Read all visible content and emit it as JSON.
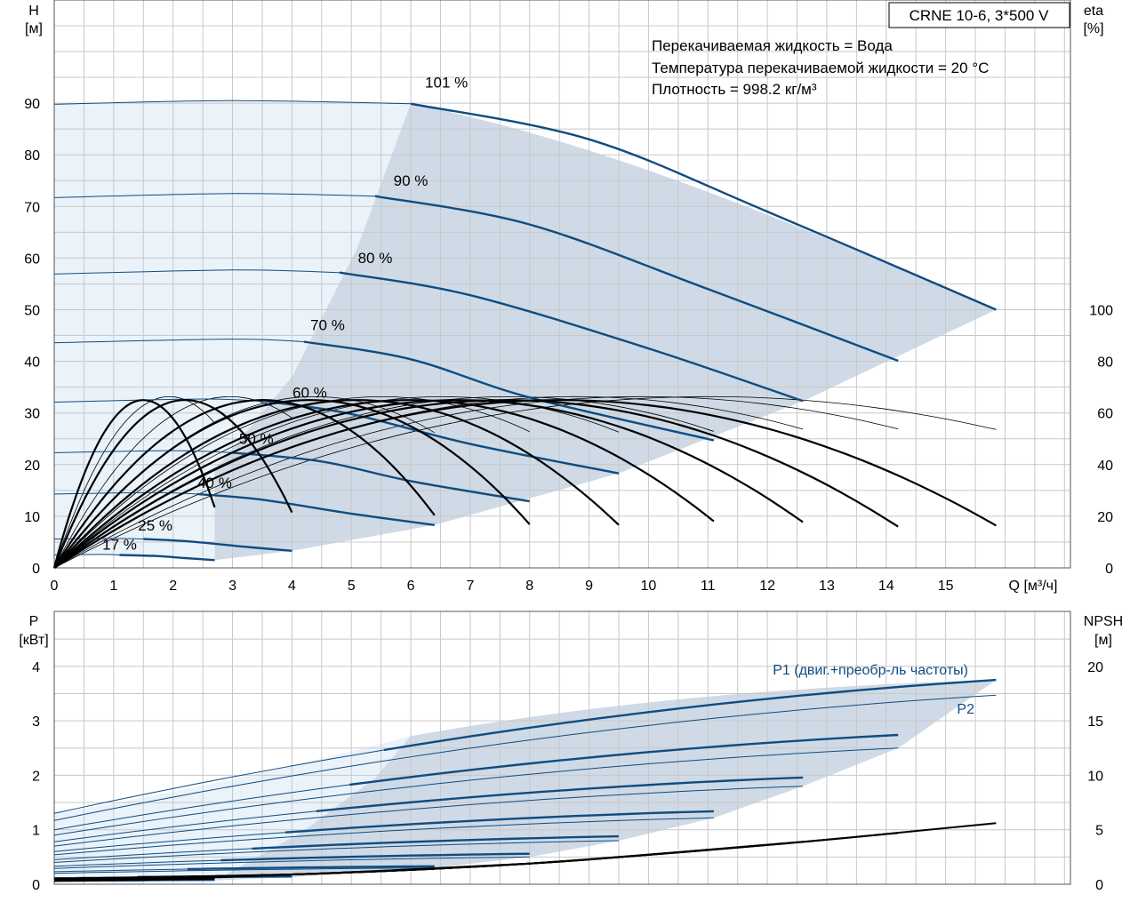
{
  "header": {
    "model": "CRNE 10-6, 3*500 V",
    "info": [
      "Перекачиваемая жидкость = Вода",
      "Температура перекачиваемой жидкости = 20 °C",
      "Плотность = 998.2 кг/м³"
    ]
  },
  "colors": {
    "grid": "#c8c8c8",
    "curve_blue": "#0f4c81",
    "curve_black": "#000000",
    "region_dark": "#cfdae6",
    "region_light": "#eaf2fa"
  },
  "chart_data": [
    {
      "type": "line",
      "name": "head-efficiency",
      "y_title": "H",
      "y_unit": "[м]",
      "y2_title": "eta",
      "y2_unit": "[%]",
      "x_label": "Q [м³/ч]",
      "xlim": [
        0,
        17.1
      ],
      "ylim": [
        0,
        90
      ],
      "y2lim": [
        0,
        100
      ],
      "x_ticks": [
        0,
        1,
        2,
        3,
        4,
        5,
        6,
        7,
        8,
        9,
        10,
        11,
        12,
        13,
        14,
        15
      ],
      "y_ticks": [
        0,
        10,
        20,
        30,
        40,
        50,
        60,
        70,
        80,
        90
      ],
      "y2_ticks": [
        0,
        20,
        40,
        60,
        80,
        100
      ],
      "grid": true,
      "head_curves": [
        {
          "label": "101 %",
          "label_pos": [
            6.6,
            93
          ],
          "points": [
            [
              0,
              89.8
            ],
            [
              3,
              90.5
            ],
            [
              6,
              89.9
            ],
            [
              9,
              83
            ],
            [
              12,
              69
            ],
            [
              15.85,
              50
            ]
          ]
        },
        {
          "label": "90 %",
          "label_pos": [
            6.0,
            74
          ],
          "points": [
            [
              0,
              71.7
            ],
            [
              3,
              72.5
            ],
            [
              5.4,
              72
            ],
            [
              8,
              66.5
            ],
            [
              11,
              54
            ],
            [
              14.2,
              40.1
            ]
          ]
        },
        {
          "label": "80 %",
          "label_pos": [
            5.4,
            59
          ],
          "points": [
            [
              0,
              56.9
            ],
            [
              3,
              57.7
            ],
            [
              4.8,
              57.2
            ],
            [
              7,
              52.8
            ],
            [
              10,
              42.5
            ],
            [
              12.6,
              32.3
            ]
          ]
        },
        {
          "label": "70 %",
          "label_pos": [
            4.6,
            46
          ],
          "points": [
            [
              0,
              43.6
            ],
            [
              3,
              44.3
            ],
            [
              4.2,
              43.8
            ],
            [
              6,
              40.4
            ],
            [
              8,
              33
            ],
            [
              11.1,
              24.7
            ]
          ]
        },
        {
          "label": "60 %",
          "label_pos": [
            4.3,
            33
          ],
          "points": [
            [
              0,
              32.1
            ],
            [
              2.5,
              32.7
            ],
            [
              3.6,
              32.2
            ],
            [
              5,
              29.8
            ],
            [
              7,
              24
            ],
            [
              9.5,
              18.3
            ]
          ]
        },
        {
          "label": "50 %",
          "label_pos": [
            3.4,
            24
          ],
          "points": [
            [
              0,
              22.3
            ],
            [
              2,
              22.7
            ],
            [
              3,
              22.3
            ],
            [
              4.5,
              20.6
            ],
            [
              6,
              16.8
            ],
            [
              8,
              12.9
            ]
          ]
        },
        {
          "label": "40 %",
          "label_pos": [
            2.7,
            15.5
          ],
          "points": [
            [
              0,
              14.3
            ],
            [
              1.7,
              14.6
            ],
            [
              2.4,
              14.3
            ],
            [
              3.5,
              13.2
            ],
            [
              5,
              10.5
            ],
            [
              6.4,
              8.3
            ]
          ]
        },
        {
          "label": "25 %",
          "label_pos": [
            1.7,
            7.2
          ],
          "points": [
            [
              0,
              5.6
            ],
            [
              1,
              5.7
            ],
            [
              1.5,
              5.6
            ],
            [
              2.3,
              5.1
            ],
            [
              3.2,
              4.1
            ],
            [
              4,
              3.3
            ]
          ]
        },
        {
          "label": "17 %",
          "label_pos": [
            1.1,
            3.5
          ],
          "points": [
            [
              0,
              2.5
            ],
            [
              0.8,
              2.6
            ],
            [
              1.1,
              2.5
            ],
            [
              1.7,
              2.3
            ],
            [
              2.2,
              1.9
            ],
            [
              2.7,
              1.5
            ]
          ]
        }
      ],
      "eta_curves": [
        {
          "peak_q": 8.5,
          "peak": 65,
          "end_q": 15.85
        },
        {
          "peak_q": 7.6,
          "peak": 65,
          "end_q": 14.2
        },
        {
          "peak_q": 6.8,
          "peak": 65,
          "end_q": 12.6
        },
        {
          "peak_q": 6.0,
          "peak": 65,
          "end_q": 11.1
        },
        {
          "peak_q": 5.1,
          "peak": 65,
          "end_q": 9.5
        },
        {
          "peak_q": 4.3,
          "peak": 65,
          "end_q": 8.0
        },
        {
          "peak_q": 3.5,
          "peak": 65,
          "end_q": 6.4
        },
        {
          "peak_q": 2.2,
          "peak": 65,
          "end_q": 4.0
        },
        {
          "peak_q": 1.5,
          "peak": 65,
          "end_q": 2.7
        }
      ],
      "eta_thin_curves": [
        {
          "peak_q": 1.9,
          "peak": 65,
          "end_q": 2.7
        },
        {
          "peak_q": 2.9,
          "peak": 65,
          "end_q": 4.0
        },
        {
          "peak_q": 4.3,
          "peak": 65,
          "end_q": 6.4
        },
        {
          "peak_q": 5.4,
          "peak": 65,
          "end_q": 8.0
        },
        {
          "peak_q": 6.4,
          "peak": 65,
          "end_q": 9.5
        },
        {
          "peak_q": 7.5,
          "peak": 65,
          "end_q": 11.1
        },
        {
          "peak_q": 8.6,
          "peak": 65,
          "end_q": 12.6
        },
        {
          "peak_q": 9.7,
          "peak": 65,
          "end_q": 14.2
        },
        {
          "peak_q": 10.8,
          "peak": 65,
          "end_q": 15.85
        }
      ]
    },
    {
      "type": "line",
      "name": "power-npsh",
      "y_title": "P",
      "y_unit": "[кВт]",
      "y2_title": "NPSH",
      "y2_unit": "[м]",
      "xlim": [
        0,
        17.1
      ],
      "ylim": [
        0,
        4.6
      ],
      "y2lim": [
        0,
        23
      ],
      "y_ticks": [
        0,
        1,
        2,
        3,
        4
      ],
      "y2_ticks": [
        0,
        5,
        10,
        15,
        20
      ],
      "grid": true,
      "p1_label": "P1 (двиг.+преобр-ль частоты)",
      "p2_label": "P2",
      "p1_curves": [
        {
          "start": 1.3,
          "end_q": 15.85,
          "end": 3.75
        },
        {
          "start": 1.0,
          "end_q": 14.2,
          "end": 2.74
        },
        {
          "start": 0.78,
          "end_q": 12.6,
          "end": 1.96
        },
        {
          "start": 0.6,
          "end_q": 11.1,
          "end": 1.34
        },
        {
          "start": 0.45,
          "end_q": 9.5,
          "end": 0.88
        },
        {
          "start": 0.33,
          "end_q": 8.0,
          "end": 0.56
        },
        {
          "start": 0.23,
          "end_q": 6.4,
          "end": 0.33
        },
        {
          "start": 0.12,
          "end_q": 4.0,
          "end": 0.15
        },
        {
          "start": 0.06,
          "end_q": 2.7,
          "end": 0.08
        }
      ],
      "p2_curves": [
        {
          "start": 1.17,
          "end_q": 15.85,
          "end": 3.47
        },
        {
          "start": 0.9,
          "end_q": 14.2,
          "end": 2.5
        },
        {
          "start": 0.7,
          "end_q": 12.6,
          "end": 1.8
        },
        {
          "start": 0.54,
          "end_q": 11.1,
          "end": 1.22
        },
        {
          "start": 0.4,
          "end_q": 9.5,
          "end": 0.8
        },
        {
          "start": 0.29,
          "end_q": 8.0,
          "end": 0.5
        },
        {
          "start": 0.2,
          "end_q": 6.4,
          "end": 0.3
        },
        {
          "start": 0.1,
          "end_q": 4.0,
          "end": 0.13
        },
        {
          "start": 0.05,
          "end_q": 2.7,
          "end": 0.07
        }
      ],
      "npsh_curves": [
        {
          "points": [
            [
              0,
              0.5
            ],
            [
              4,
              0.9
            ],
            [
              8,
              1.9
            ],
            [
              12,
              3.6
            ],
            [
              15.85,
              5.6
            ]
          ]
        },
        {
          "points": [
            [
              0,
              0.5
            ],
            [
              4,
              0.9
            ],
            [
              8,
              1.9
            ],
            [
              12,
              3.6
            ],
            [
              14.2,
              4.7
            ]
          ]
        },
        {
          "points": [
            [
              0,
              0.5
            ],
            [
              4,
              0.9
            ],
            [
              8,
              1.9
            ],
            [
              12.6,
              3.9
            ]
          ]
        },
        {
          "points": [
            [
              0,
              0.5
            ],
            [
              4,
              0.9
            ],
            [
              8,
              1.9
            ],
            [
              11.1,
              3.2
            ]
          ]
        },
        {
          "points": [
            [
              0,
              0.5
            ],
            [
              4,
              0.9
            ],
            [
              8,
              1.9
            ],
            [
              9.5,
              2.5
            ]
          ]
        },
        {
          "points": [
            [
              0,
              0.5
            ],
            [
              4,
              0.9
            ],
            [
              8,
              1.9
            ]
          ]
        },
        {
          "points": [
            [
              0,
              0.5
            ],
            [
              4,
              0.9
            ],
            [
              6.4,
              1.4
            ]
          ]
        },
        {
          "points": [
            [
              0,
              0.4
            ],
            [
              2,
              0.5
            ],
            [
              4,
              0.9
            ]
          ]
        },
        {
          "points": [
            [
              0,
              0.3
            ],
            [
              1.5,
              0.4
            ],
            [
              2.7,
              0.5
            ]
          ]
        }
      ]
    }
  ]
}
